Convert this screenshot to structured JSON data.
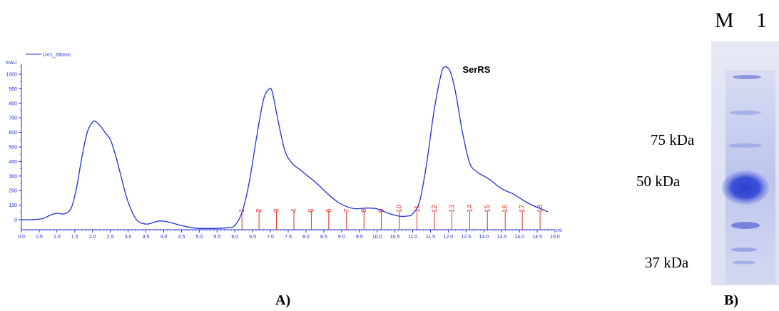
{
  "panel_labels": {
    "a": "A)",
    "b": "B)"
  },
  "chart_data": {
    "type": "line",
    "title": "",
    "xlabel": "ml",
    "ylabel": "mAU",
    "xlim": [
      0,
      15
    ],
    "ylim": [
      -70,
      1060
    ],
    "x_ticks": [
      0.0,
      0.5,
      1.0,
      1.5,
      2.0,
      2.5,
      3.0,
      3.5,
      4.0,
      4.5,
      5.0,
      5.5,
      6.0,
      6.5,
      7.0,
      7.5,
      8.0,
      8.5,
      9.0,
      9.5,
      10.0,
      10.5,
      11.0,
      11.5,
      12.0,
      12.5,
      13.0,
      13.5,
      14.0,
      14.5,
      15.0
    ],
    "x_tick_labels": [
      "0.0",
      "0.5",
      "1.0",
      "1.5",
      "2.0",
      "2.5",
      "3.0",
      "3.5",
      "4.0",
      "4.5",
      "5.0",
      "5.5",
      "6.0",
      "6.5",
      "7.0",
      "7.5",
      "8.0",
      "8.5",
      "9.0",
      "9.5",
      "10.0",
      "10.5",
      "11.0",
      "11.5",
      "12.0",
      "12.5",
      "13.0",
      "13.5",
      "14.0",
      "14.5",
      "15.0"
    ],
    "y_ticks": [
      0,
      100,
      200,
      300,
      400,
      500,
      600,
      700,
      800,
      900,
      1000
    ],
    "y_tick_labels": [
      "0",
      "100",
      "200",
      "300",
      "400",
      "500",
      "600",
      "700",
      "800",
      "900",
      "1000"
    ],
    "grid": false,
    "legend_position": "top-left",
    "series": [
      {
        "name": "UV1_280nm",
        "color": "#1f2fd6",
        "x": [
          0.0,
          0.3,
          0.6,
          0.8,
          1.0,
          1.2,
          1.4,
          1.55,
          1.7,
          1.85,
          2.0,
          2.08,
          2.2,
          2.35,
          2.5,
          2.65,
          2.8,
          2.95,
          3.1,
          3.25,
          3.4,
          3.55,
          3.7,
          3.85,
          4.0,
          4.2,
          4.5,
          4.8,
          5.0,
          5.5,
          5.8,
          6.0,
          6.2,
          6.4,
          6.6,
          6.8,
          6.95,
          7.05,
          7.2,
          7.4,
          7.6,
          7.8,
          8.0,
          8.3,
          8.6,
          8.9,
          9.2,
          9.4,
          9.7,
          10.0,
          10.3,
          10.6,
          10.85,
          11.0,
          11.2,
          11.4,
          11.6,
          11.8,
          11.9,
          12.05,
          12.2,
          12.4,
          12.6,
          12.8,
          13.0,
          13.2,
          13.4,
          13.6,
          13.8,
          14.0,
          14.2,
          14.4,
          14.6,
          14.8
        ],
        "y": [
          0,
          0,
          8,
          30,
          45,
          40,
          80,
          220,
          430,
          600,
          670,
          675,
          650,
          600,
          550,
          440,
          300,
          160,
          60,
          -5,
          -25,
          -30,
          -20,
          -10,
          -10,
          -20,
          -40,
          -55,
          -60,
          -60,
          -55,
          -40,
          50,
          250,
          550,
          820,
          895,
          880,
          700,
          480,
          390,
          350,
          310,
          250,
          180,
          120,
          85,
          75,
          80,
          75,
          45,
          25,
          25,
          40,
          130,
          400,
          750,
          1000,
          1050,
          1020,
          880,
          600,
          390,
          330,
          300,
          270,
          230,
          200,
          180,
          150,
          120,
          95,
          75,
          55
        ]
      }
    ],
    "fractions": [
      {
        "label": "1",
        "x": 6.2
      },
      {
        "label": "2",
        "x": 6.68
      },
      {
        "label": "3",
        "x": 7.17
      },
      {
        "label": "4",
        "x": 7.66
      },
      {
        "label": "5",
        "x": 8.15
      },
      {
        "label": "6",
        "x": 8.64
      },
      {
        "label": "7",
        "x": 9.14
      },
      {
        "label": "8",
        "x": 9.63
      },
      {
        "label": "9",
        "x": 10.12
      },
      {
        "label": "10",
        "x": 10.62
      },
      {
        "label": "11",
        "x": 11.12
      },
      {
        "label": "12",
        "x": 11.61
      },
      {
        "label": "13",
        "x": 12.1
      },
      {
        "label": "14",
        "x": 12.6
      },
      {
        "label": "15",
        "x": 13.1
      },
      {
        "label": "16",
        "x": 13.6
      },
      {
        "label": "17",
        "x": 14.08
      },
      {
        "label": "18",
        "x": 14.58
      }
    ],
    "annotations": [
      {
        "text": "SerRS",
        "x": 12.4,
        "y": 1010
      }
    ]
  },
  "gel": {
    "lanes": [
      "M",
      "1"
    ],
    "markers": [
      "75 kDa",
      "50 kDa",
      "37 kDa"
    ]
  }
}
